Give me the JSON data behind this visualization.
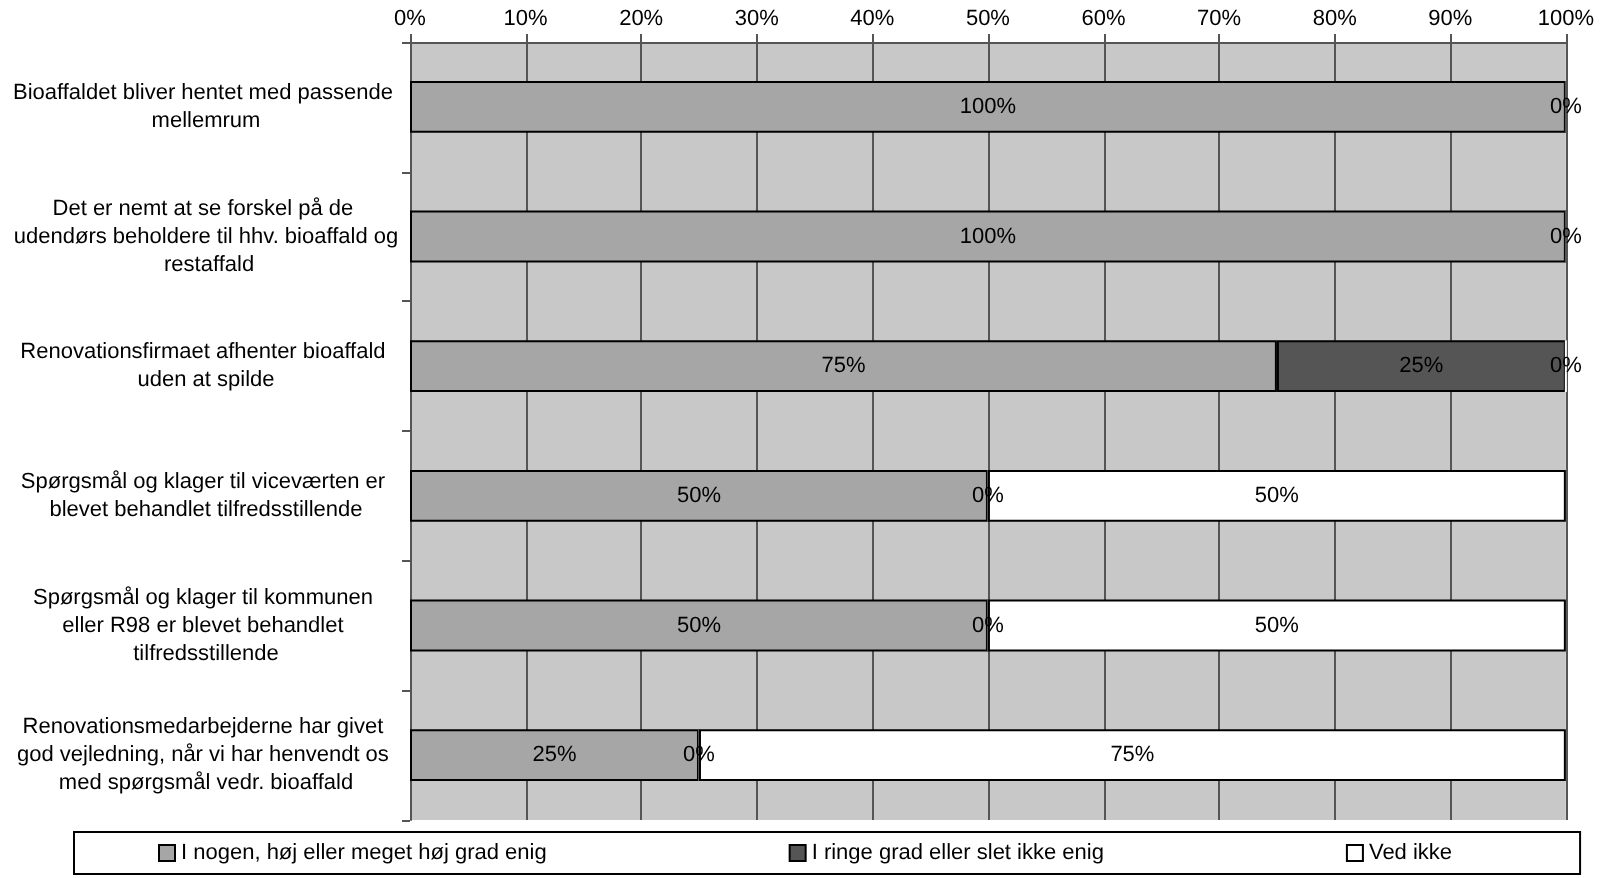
{
  "chart_data": {
    "type": "bar",
    "orientation": "horizontal",
    "stacked": true,
    "categories": [
      "Bioaffaldet bliver hentet med passende mellemrum",
      "Det er nemt at se forskel på de udendørs beholdere til hhv. bioaffald og restaffald",
      "Renovationsfirmaet afhenter bioaffald uden at spilde",
      "Spørgsmål og klager til viceværten er blevet behandlet tilfredsstillende",
      "Spørgsmål og klager til kommunen eller R98 er blevet behandlet tilfredsstillende",
      "Renovationsmedarbejderne har givet god vejledning, når vi har henvendt os med spørgsmål vedr. bioaffald"
    ],
    "series": [
      {
        "name": "I nogen, høj eller meget høj grad enig",
        "color": "#a6a6a6",
        "values": [
          100,
          100,
          75,
          50,
          50,
          25
        ],
        "value_labels": [
          "100%",
          "100%",
          "75%",
          "50%",
          "50%",
          "25%"
        ]
      },
      {
        "name": "I ringe grad eller slet ikke enig",
        "color": "#555555",
        "values": [
          0,
          0,
          25,
          0,
          0,
          0
        ],
        "value_labels": [
          "0%",
          "0%",
          "25%",
          "0%",
          "0%",
          "0%"
        ]
      },
      {
        "name": "Ved ikke",
        "color": "#ffffff",
        "values": [
          0,
          0,
          0,
          50,
          50,
          75
        ],
        "value_labels": [
          null,
          null,
          "0%",
          "50%",
          "50%",
          "75%"
        ]
      }
    ],
    "xlim": [
      0,
      100
    ],
    "xticks": [
      {
        "value": 0,
        "label": "0%"
      },
      {
        "value": 10,
        "label": "10%"
      },
      {
        "value": 20,
        "label": "20%"
      },
      {
        "value": 30,
        "label": "30%"
      },
      {
        "value": 40,
        "label": "40%"
      },
      {
        "value": 50,
        "label": "50%"
      },
      {
        "value": 60,
        "label": "60%"
      },
      {
        "value": 70,
        "label": "70%"
      },
      {
        "value": 80,
        "label": "80%"
      },
      {
        "value": 90,
        "label": "90%"
      },
      {
        "value": 100,
        "label": "100%"
      }
    ],
    "grid": "x",
    "legend": "bottom"
  }
}
